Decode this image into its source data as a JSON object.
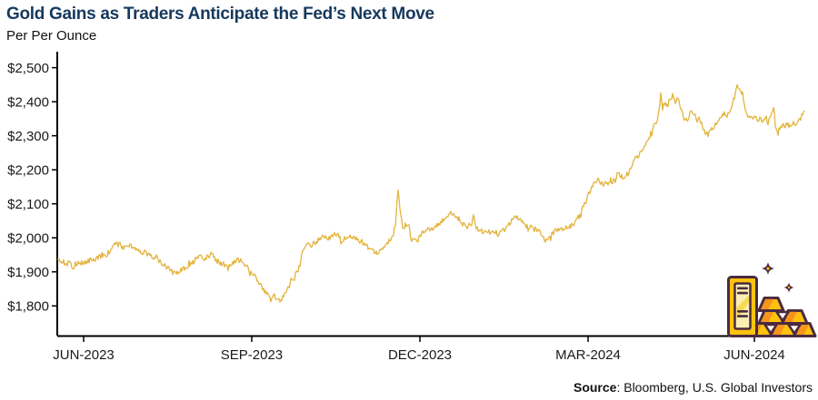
{
  "page": {
    "title": "Gold Gains as Traders Anticipate the Fed’s Next Move",
    "subtitle": "Per Per Ounce"
  },
  "source": {
    "label": "Source",
    "rest": ": Bloomberg, U.S. Global Investors"
  },
  "colors": {
    "title_navy": "#16395D",
    "axis_black": "#000000",
    "line_gold": "#E3B43C",
    "icon_gold": "#FFC20E",
    "icon_orange": "#F7941E",
    "icon_cream": "#FBEFB3",
    "icon_outline": "#4A2B40"
  },
  "icons": {
    "gold_bars": "gold-bars-icon",
    "sparkle": "sparkle-icon"
  },
  "chart_data": {
    "type": "line",
    "title": "Gold Gains as Traders Anticipate the Fed’s Next Move",
    "ylabel": "Per Per Ounce",
    "grid": false,
    "legend": "none",
    "line_color": "#E3B43C",
    "line_width": 1.3,
    "jitter_usd": 8,
    "y_axis": {
      "min": 1710,
      "max": 2547,
      "ticks": [
        {
          "label": "$1,800",
          "value": 1800
        },
        {
          "label": "$1,900",
          "value": 1900
        },
        {
          "label": "$2,000",
          "value": 2000
        },
        {
          "label": "$2,100",
          "value": 2100
        },
        {
          "label": "$2,200",
          "value": 2200
        },
        {
          "label": "$2,300",
          "value": 2300
        },
        {
          "label": "$2,400",
          "value": 2400
        },
        {
          "label": "$2,500",
          "value": 2500
        }
      ]
    },
    "x_axis": {
      "ticks": [
        {
          "label": "JUN-2023",
          "f": 0.0353
        },
        {
          "label": "SEP-2023",
          "f": 0.2603
        },
        {
          "label": "DEC-2023",
          "f": 0.4854
        },
        {
          "label": "MAR-2024",
          "f": 0.7105
        },
        {
          "label": "JUN-2024",
          "f": 0.9331
        }
      ]
    },
    "series": [
      {
        "points": [
          [
            0,
            1938
          ],
          [
            0.006,
            1930
          ],
          [
            0.011,
            1922
          ],
          [
            0.016,
            1928
          ],
          [
            0.021,
            1915
          ],
          [
            0.026,
            1920
          ],
          [
            0.03,
            1928
          ],
          [
            0.035,
            1926
          ],
          [
            0.04,
            1930
          ],
          [
            0.045,
            1938
          ],
          [
            0.05,
            1932
          ],
          [
            0.055,
            1942
          ],
          [
            0.06,
            1950
          ],
          [
            0.064,
            1946
          ],
          [
            0.069,
            1958
          ],
          [
            0.074,
            1970
          ],
          [
            0.079,
            1985
          ],
          [
            0.084,
            1980
          ],
          [
            0.089,
            1972
          ],
          [
            0.094,
            1968
          ],
          [
            0.099,
            1978
          ],
          [
            0.103,
            1972
          ],
          [
            0.108,
            1962
          ],
          [
            0.113,
            1955
          ],
          [
            0.118,
            1958
          ],
          [
            0.123,
            1950
          ],
          [
            0.128,
            1945
          ],
          [
            0.133,
            1940
          ],
          [
            0.137,
            1932
          ],
          [
            0.142,
            1920
          ],
          [
            0.147,
            1912
          ],
          [
            0.152,
            1902
          ],
          [
            0.157,
            1896
          ],
          [
            0.162,
            1898
          ],
          [
            0.167,
            1908
          ],
          [
            0.173,
            1916
          ],
          [
            0.179,
            1924
          ],
          [
            0.185,
            1935
          ],
          [
            0.191,
            1943
          ],
          [
            0.197,
            1938
          ],
          [
            0.203,
            1948
          ],
          [
            0.207,
            1951
          ],
          [
            0.21,
            1940
          ],
          [
            0.215,
            1930
          ],
          [
            0.221,
            1924
          ],
          [
            0.227,
            1916
          ],
          [
            0.232,
            1921
          ],
          [
            0.237,
            1928
          ],
          [
            0.242,
            1935
          ],
          [
            0.247,
            1930
          ],
          [
            0.252,
            1921
          ],
          [
            0.257,
            1906
          ],
          [
            0.262,
            1894
          ],
          [
            0.266,
            1881
          ],
          [
            0.271,
            1866
          ],
          [
            0.276,
            1845
          ],
          [
            0.281,
            1833
          ],
          [
            0.286,
            1822
          ],
          [
            0.291,
            1827
          ],
          [
            0.296,
            1820
          ],
          [
            0.299,
            1817
          ],
          [
            0.303,
            1827
          ],
          [
            0.307,
            1843
          ],
          [
            0.31,
            1860
          ],
          [
            0.314,
            1872
          ],
          [
            0.318,
            1884
          ],
          [
            0.321,
            1902
          ],
          [
            0.325,
            1920
          ],
          [
            0.328,
            1955
          ],
          [
            0.332,
            1972
          ],
          [
            0.336,
            1980
          ],
          [
            0.339,
            1975
          ],
          [
            0.343,
            1984
          ],
          [
            0.347,
            1990
          ],
          [
            0.352,
            1996
          ],
          [
            0.356,
            2002
          ],
          [
            0.361,
            1997
          ],
          [
            0.366,
            2004
          ],
          [
            0.371,
            2009
          ],
          [
            0.376,
            2008
          ],
          [
            0.381,
            1992
          ],
          [
            0.386,
            1998
          ],
          [
            0.392,
            2001
          ],
          [
            0.398,
            1999
          ],
          [
            0.404,
            1990
          ],
          [
            0.41,
            1986
          ],
          [
            0.416,
            1972
          ],
          [
            0.422,
            1962
          ],
          [
            0.428,
            1957
          ],
          [
            0.433,
            1968
          ],
          [
            0.438,
            1977
          ],
          [
            0.443,
            1990
          ],
          [
            0.448,
            1998
          ],
          [
            0.453,
            2045
          ],
          [
            0.456,
            2148
          ],
          [
            0.459,
            2085
          ],
          [
            0.462,
            2035
          ],
          [
            0.466,
            2030
          ],
          [
            0.47,
            2037
          ],
          [
            0.473,
            2000
          ],
          [
            0.477,
            1992
          ],
          [
            0.481,
            1988
          ],
          [
            0.484,
            2000
          ],
          [
            0.488,
            2014
          ],
          [
            0.493,
            2020
          ],
          [
            0.498,
            2026
          ],
          [
            0.502,
            2030
          ],
          [
            0.507,
            2033
          ],
          [
            0.512,
            2043
          ],
          [
            0.517,
            2055
          ],
          [
            0.521,
            2064
          ],
          [
            0.524,
            2071
          ],
          [
            0.528,
            2070
          ],
          [
            0.532,
            2062
          ],
          [
            0.535,
            2055
          ],
          [
            0.539,
            2046
          ],
          [
            0.543,
            2040
          ],
          [
            0.546,
            2033
          ],
          [
            0.55,
            2038
          ],
          [
            0.554,
            2030
          ],
          [
            0.557,
            2060
          ],
          [
            0.561,
            2032
          ],
          [
            0.564,
            2024
          ],
          [
            0.568,
            2020
          ],
          [
            0.572,
            2017
          ],
          [
            0.575,
            2019
          ],
          [
            0.579,
            2016
          ],
          [
            0.583,
            2019
          ],
          [
            0.586,
            2015
          ],
          [
            0.59,
            2016
          ],
          [
            0.594,
            2014
          ],
          [
            0.597,
            2020
          ],
          [
            0.601,
            2030
          ],
          [
            0.605,
            2040
          ],
          [
            0.608,
            2048
          ],
          [
            0.612,
            2060
          ],
          [
            0.616,
            2063
          ],
          [
            0.619,
            2055
          ],
          [
            0.623,
            2043
          ],
          [
            0.627,
            2035
          ],
          [
            0.63,
            2032
          ],
          [
            0.634,
            2030
          ],
          [
            0.637,
            2028
          ],
          [
            0.641,
            2024
          ],
          [
            0.645,
            2020
          ],
          [
            0.648,
            2008
          ],
          [
            0.652,
            1995
          ],
          [
            0.656,
            1990
          ],
          [
            0.659,
            2000
          ],
          [
            0.663,
            2012
          ],
          [
            0.667,
            2022
          ],
          [
            0.67,
            2028
          ],
          [
            0.674,
            2026
          ],
          [
            0.678,
            2029
          ],
          [
            0.681,
            2031
          ],
          [
            0.685,
            2030
          ],
          [
            0.689,
            2035
          ],
          [
            0.692,
            2043
          ],
          [
            0.696,
            2055
          ],
          [
            0.7,
            2070
          ],
          [
            0.703,
            2088
          ],
          [
            0.707,
            2105
          ],
          [
            0.71,
            2122
          ],
          [
            0.714,
            2140
          ],
          [
            0.718,
            2155
          ],
          [
            0.721,
            2165
          ],
          [
            0.725,
            2160
          ],
          [
            0.729,
            2158
          ],
          [
            0.732,
            2157
          ],
          [
            0.736,
            2160
          ],
          [
            0.74,
            2162
          ],
          [
            0.743,
            2164
          ],
          [
            0.747,
            2170
          ],
          [
            0.751,
            2200
          ],
          [
            0.753,
            2185
          ],
          [
            0.757,
            2178
          ],
          [
            0.76,
            2180
          ],
          [
            0.764,
            2190
          ],
          [
            0.768,
            2205
          ],
          [
            0.771,
            2220
          ],
          [
            0.775,
            2232
          ],
          [
            0.779,
            2245
          ],
          [
            0.782,
            2258
          ],
          [
            0.786,
            2270
          ],
          [
            0.789,
            2285
          ],
          [
            0.793,
            2300
          ],
          [
            0.797,
            2318
          ],
          [
            0.8,
            2335
          ],
          [
            0.804,
            2350
          ],
          [
            0.808,
            2430
          ],
          [
            0.81,
            2375
          ],
          [
            0.813,
            2388
          ],
          [
            0.816,
            2395
          ],
          [
            0.82,
            2405
          ],
          [
            0.824,
            2420
          ],
          [
            0.827,
            2400
          ],
          [
            0.831,
            2405
          ],
          [
            0.835,
            2380
          ],
          [
            0.838,
            2355
          ],
          [
            0.842,
            2345
          ],
          [
            0.846,
            2360
          ],
          [
            0.849,
            2370
          ],
          [
            0.853,
            2363
          ],
          [
            0.856,
            2345
          ],
          [
            0.86,
            2350
          ],
          [
            0.864,
            2325
          ],
          [
            0.867,
            2312
          ],
          [
            0.871,
            2305
          ],
          [
            0.875,
            2315
          ],
          [
            0.878,
            2325
          ],
          [
            0.882,
            2340
          ],
          [
            0.886,
            2350
          ],
          [
            0.889,
            2358
          ],
          [
            0.893,
            2365
          ],
          [
            0.897,
            2360
          ],
          [
            0.9,
            2372
          ],
          [
            0.904,
            2390
          ],
          [
            0.908,
            2435
          ],
          [
            0.91,
            2450
          ],
          [
            0.912,
            2440
          ],
          [
            0.915,
            2425
          ],
          [
            0.917,
            2430
          ],
          [
            0.92,
            2385
          ],
          [
            0.923,
            2360
          ],
          [
            0.927,
            2355
          ],
          [
            0.931,
            2352
          ],
          [
            0.934,
            2354
          ],
          [
            0.938,
            2345
          ],
          [
            0.942,
            2350
          ],
          [
            0.945,
            2344
          ],
          [
            0.949,
            2350
          ],
          [
            0.953,
            2342
          ],
          [
            0.956,
            2365
          ],
          [
            0.959,
            2390
          ],
          [
            0.961,
            2330
          ],
          [
            0.964,
            2302
          ],
          [
            0.966,
            2316
          ],
          [
            0.968,
            2328
          ],
          [
            0.971,
            2332
          ],
          [
            0.973,
            2327
          ],
          [
            0.977,
            2334
          ],
          [
            0.981,
            2328
          ],
          [
            0.984,
            2338
          ],
          [
            0.988,
            2332
          ],
          [
            0.991,
            2338
          ],
          [
            0.995,
            2350
          ],
          [
            0.998,
            2366
          ],
          [
            1,
            2373
          ]
        ]
      }
    ]
  }
}
